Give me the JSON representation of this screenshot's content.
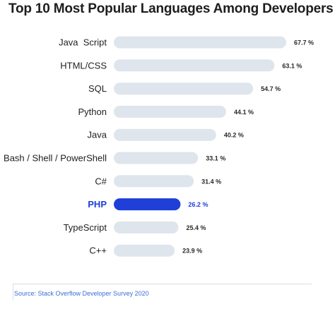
{
  "chart_data": {
    "type": "bar",
    "orientation": "horizontal",
    "title": "Top 10 Most Popular Languages Among Developers",
    "categories": [
      "Java  Script",
      "HTML/CSS",
      "SQL",
      "Python",
      "Java",
      "Bash / Shell / PowerShell",
      "C#",
      "PHP",
      "TypeScript",
      "C++"
    ],
    "values": [
      67.7,
      63.1,
      54.7,
      44.1,
      40.2,
      33.1,
      31.4,
      26.2,
      25.4,
      23.9
    ],
    "value_labels": [
      "67.7 %",
      "63.1 %",
      "54.7 %",
      "44.1 %",
      "40.2 %",
      "33.1 %",
      "31.4 %",
      "26.2 %",
      "25.4 %",
      "23.9 %"
    ],
    "highlighted": "PHP",
    "xlim": [
      0,
      67.7
    ],
    "grid": false,
    "colors": {
      "bar": "#dfe5ec",
      "highlight": "#1e3fd8",
      "label_highlight": "#1e3fd8"
    }
  },
  "source": "Source: Stack Overflow Developer Survey 2020"
}
